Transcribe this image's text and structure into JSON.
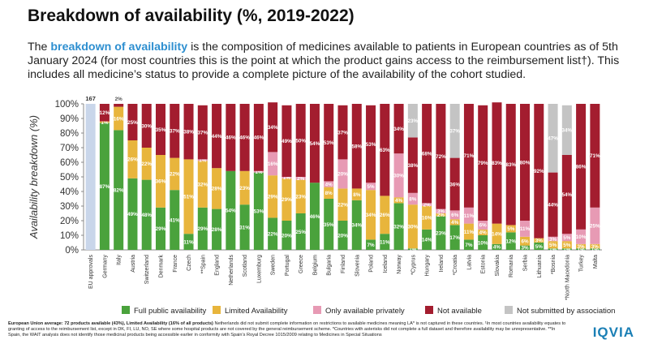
{
  "chart_data": {
    "type": "stacked_bar",
    "title": "Breakdown of availability (%, 2019-2022)",
    "subtitle": [
      "The ",
      "breakdown of availability",
      " is the composition of medicines available to patients in European countries as of 5th January 2024 (for most countries this is the point at which the product gains access to the reimbursement list†). This includes all medicine’s status to provide a complete picture of the availability of the cohort studied."
    ],
    "y_label": "Availability breakdown (%)",
    "categories": [
      "EU approvals",
      "Germany",
      "Italy",
      "Austria",
      "Switzerland",
      "Denmark",
      "France",
      "Czech",
      "**Spain",
      "England",
      "Netherlands",
      "Scotland",
      "Luxemburg",
      "Sweden",
      "Portugal",
      "Greece",
      "Belgium",
      "Bulgaria",
      "Finland",
      "Slovenia",
      "Poland",
      "Iceland",
      "Norway",
      "*Cyprus",
      "Hungary",
      "Ireland",
      "*Croatia",
      "Latvia",
      "Estonia",
      "Slovakia",
      "Romania",
      "Serbia",
      "Lithuania",
      "*Bosnia",
      "*North Macedonia",
      "Turkey",
      "Malta"
    ],
    "eu_approvals": {
      "value": 100,
      "count": 167,
      "color": "#c9d6ea"
    },
    "series": [
      {
        "name": "Full public availability",
        "color": "#4aa23c",
        "values": [
          null,
          87,
          82,
          49,
          48,
          29,
          41,
          11,
          29,
          28,
          54,
          31,
          53,
          22,
          20,
          25,
          46,
          35,
          20,
          34,
          7,
          11,
          32,
          1,
          14,
          23,
          17,
          7,
          10,
          4,
          12,
          3,
          5,
          1,
          1,
          1,
          1
        ],
        "value_labels": [
          null,
          "87%",
          "82%",
          "49%",
          "48%",
          "29%",
          "41%",
          "11%",
          "29%",
          "28%",
          "54%",
          "31%",
          "53%",
          "22%",
          "20%",
          "25%",
          "46%",
          "35%",
          "20%",
          "34%",
          "7%",
          "11%",
          "32%",
          "1%",
          "14%",
          "23%",
          "17%",
          "7%",
          "10%",
          "4%",
          "12%",
          "3%",
          "5%",
          "1%",
          "1%",
          "1%",
          "1%"
        ]
      },
      {
        "name": "Limited Availability",
        "color": "#e8b53c",
        "values": [
          null,
          1,
          16,
          26,
          22,
          36,
          22,
          51,
          32,
          28,
          0,
          23,
          0,
          29,
          29,
          23,
          0,
          8,
          22,
          8,
          34,
          26,
          4,
          30,
          16,
          2,
          4,
          11,
          4,
          14,
          5,
          6,
          3,
          5,
          5,
          3,
          3
        ],
        "value_labels": [
          null,
          "1%",
          "16%",
          "26%",
          "22%",
          "36%",
          "22%",
          "51%",
          "32%",
          "28%",
          null,
          "23%",
          null,
          "29%",
          "29%",
          "23%",
          null,
          "8%",
          "22%",
          "8%",
          "34%",
          "26%",
          "4%",
          "30%",
          "16%",
          "2%",
          "4%",
          "11%",
          "4%",
          "14%",
          "5%",
          "6%",
          "3%",
          "5%",
          "5%",
          "3%",
          "3%"
        ]
      },
      {
        "name": "Only available privately",
        "color": "#e79ab4",
        "values": [
          null,
          0,
          0,
          0,
          0,
          0,
          0,
          0,
          1,
          0,
          0,
          0,
          1,
          16,
          1,
          2,
          0,
          4,
          20,
          0,
          5,
          0,
          30,
          8,
          2,
          3,
          6,
          11,
          6,
          0,
          0,
          11,
          0,
          3,
          5,
          10,
          25
        ],
        "value_labels": [
          null,
          null,
          null,
          null,
          null,
          null,
          null,
          null,
          "1%",
          null,
          null,
          null,
          "1%",
          "16%",
          "1%",
          "2%",
          null,
          "4%",
          "20%",
          null,
          "5%",
          null,
          "30%",
          "8%",
          "2%",
          "3%",
          "6%",
          "11%",
          "6%",
          null,
          null,
          "11%",
          null,
          "3%",
          "5%",
          "10%",
          "25%"
        ]
      },
      {
        "name": "Not available",
        "color": "#a31d2f",
        "values": [
          null,
          12,
          2,
          25,
          30,
          35,
          37,
          38,
          37,
          44,
          46,
          46,
          46,
          34,
          49,
          50,
          54,
          53,
          37,
          58,
          53,
          63,
          34,
          38,
          68,
          72,
          36,
          71,
          79,
          83,
          83,
          80,
          92,
          44,
          54,
          86,
          71
        ],
        "value_labels": [
          null,
          "12%",
          "2%",
          "25%",
          "30%",
          "35%",
          "37%",
          "38%",
          "37%",
          "44%",
          "46%",
          "46%",
          "46%",
          "34%",
          "49%",
          "50%",
          "54%",
          "53%",
          "37%",
          "58%",
          "53%",
          "63%",
          "34%",
          "38%",
          "68%",
          "72%",
          "36%",
          "71%",
          "79%",
          "83%",
          "83%",
          "80%",
          "92%",
          "44%",
          "54%",
          "86%",
          "71%"
        ]
      },
      {
        "name": "Not submitted by association",
        "color": "#c4c4c4",
        "values": [
          null,
          0,
          0,
          0,
          0,
          0,
          0,
          0,
          0,
          0,
          0,
          0,
          0,
          0,
          0,
          0,
          0,
          0,
          0,
          0,
          0,
          0,
          0,
          23,
          0,
          0,
          37,
          0,
          0,
          0,
          0,
          0,
          0,
          47,
          34,
          0,
          0
        ],
        "value_labels": [
          null,
          null,
          null,
          null,
          null,
          null,
          null,
          null,
          null,
          null,
          null,
          null,
          null,
          null,
          null,
          null,
          null,
          null,
          null,
          null,
          null,
          null,
          null,
          "23%",
          null,
          null,
          "37%",
          null,
          null,
          null,
          null,
          null,
          null,
          "47%",
          "34%",
          null,
          null
        ]
      }
    ],
    "ylim": [
      0,
      100
    ],
    "yticks": [
      {
        "value": 0,
        "label": "0%"
      },
      {
        "value": 10,
        "label": "10%"
      },
      {
        "value": 20,
        "label": "20%"
      },
      {
        "value": 30,
        "label": "30%"
      },
      {
        "value": 40,
        "label": "40%"
      },
      {
        "value": 50,
        "label": "50%"
      },
      {
        "value": 60,
        "label": "60%"
      },
      {
        "value": 70,
        "label": "70%"
      },
      {
        "value": 80,
        "label": "80%"
      },
      {
        "value": 90,
        "label": "90%"
      },
      {
        "value": 100,
        "label": "100%"
      }
    ],
    "grid": false,
    "legend": "bottom",
    "footnote": [
      "European Union average: 72 products available (43%), Limited Availability (16% of all products)",
      " Netherlands did not submit complete information on restrictions to available medicines meaning LA* is not captured in these countries. ¹In most countries availability equates to granting of access to the reimbursement list, except in DK, FI, LU, NO, SE where some hospital products are not covered by the general reimbursement scheme. *Countries with asterisks did not complete a full dataset and therefore availability may be unrepresentative. **In Spain, the WAIT analysis does not identify those medicinal products being accessible earlier in conformity with Spain's Royal Decree 1015/2009 relating to Medicines in Special Situations"
    ],
    "logo": "IQVIA"
  }
}
